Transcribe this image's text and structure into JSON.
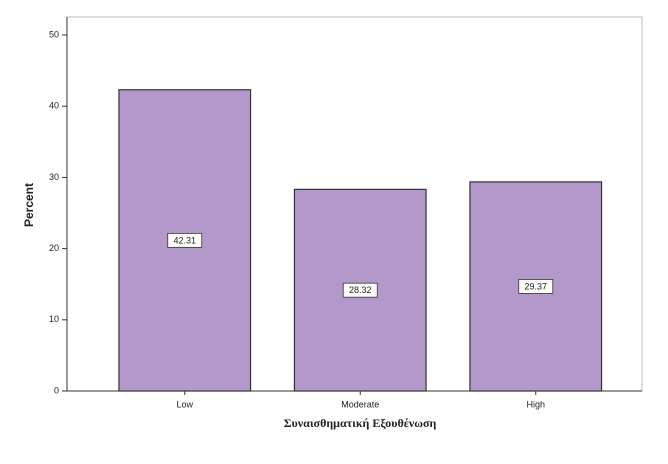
{
  "chart_data": {
    "type": "bar",
    "categories": [
      "Low",
      "Moderate",
      "High"
    ],
    "values": [
      42.31,
      28.32,
      29.37
    ],
    "color": "#b399c9",
    "xlabel": "Συναισθηματική Εξουθένωση",
    "ylabel": "Percent",
    "ylim": [
      0,
      50
    ],
    "yticks": [
      0,
      10,
      20,
      30,
      40,
      50
    ],
    "grid": false
  }
}
